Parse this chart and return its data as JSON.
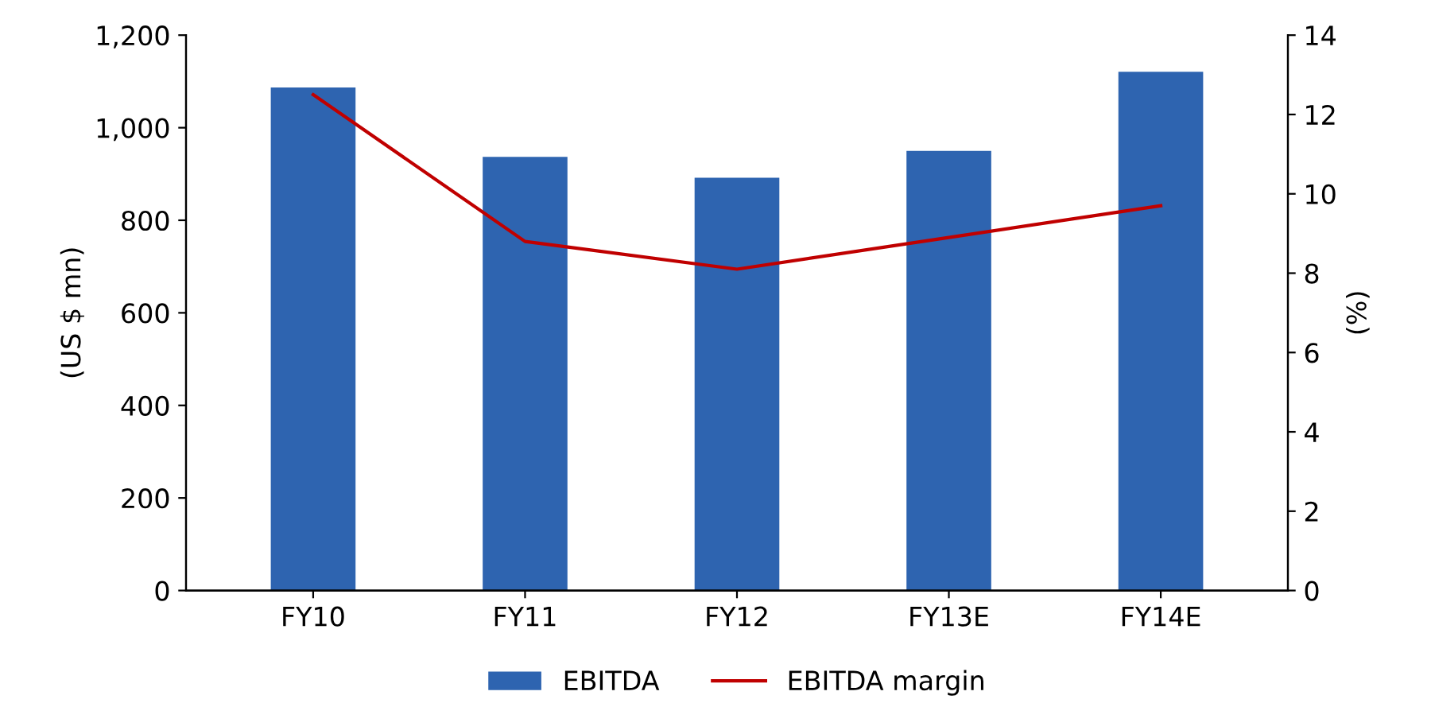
{
  "chart_data": {
    "type": "bar",
    "categories": [
      "FY10",
      "FY11",
      "FY12",
      "FY13E",
      "FY14E"
    ],
    "ylabel": "(US $ mn)",
    "y2label": "(%)",
    "series": [
      {
        "name": "EBITDA",
        "color": "#2e64b0",
        "values": [
          1087,
          937,
          892,
          950,
          1121
        ]
      },
      {
        "name": "EBITDA margin",
        "type": "line",
        "axis": "y2",
        "color": "#c00000",
        "values": [
          12.5,
          8.8,
          8.1,
          8.9,
          9.7
        ]
      }
    ],
    "ylim": [
      0,
      1200
    ],
    "yticks": [
      0,
      {
        "value": 200,
        "label": "200"
      },
      {
        "value": 400,
        "label": "400"
      },
      {
        "value": 600,
        "label": "600"
      },
      {
        "value": 800,
        "label": "800"
      },
      {
        "value": 1000,
        "label": "1,000"
      },
      {
        "value": 1200,
        "label": "1,200"
      }
    ],
    "y2lim": [
      0,
      14
    ],
    "y2ticks": [
      0,
      2,
      4,
      6,
      8,
      10,
      12,
      14
    ],
    "legend": "bottom",
    "grid": false
  }
}
